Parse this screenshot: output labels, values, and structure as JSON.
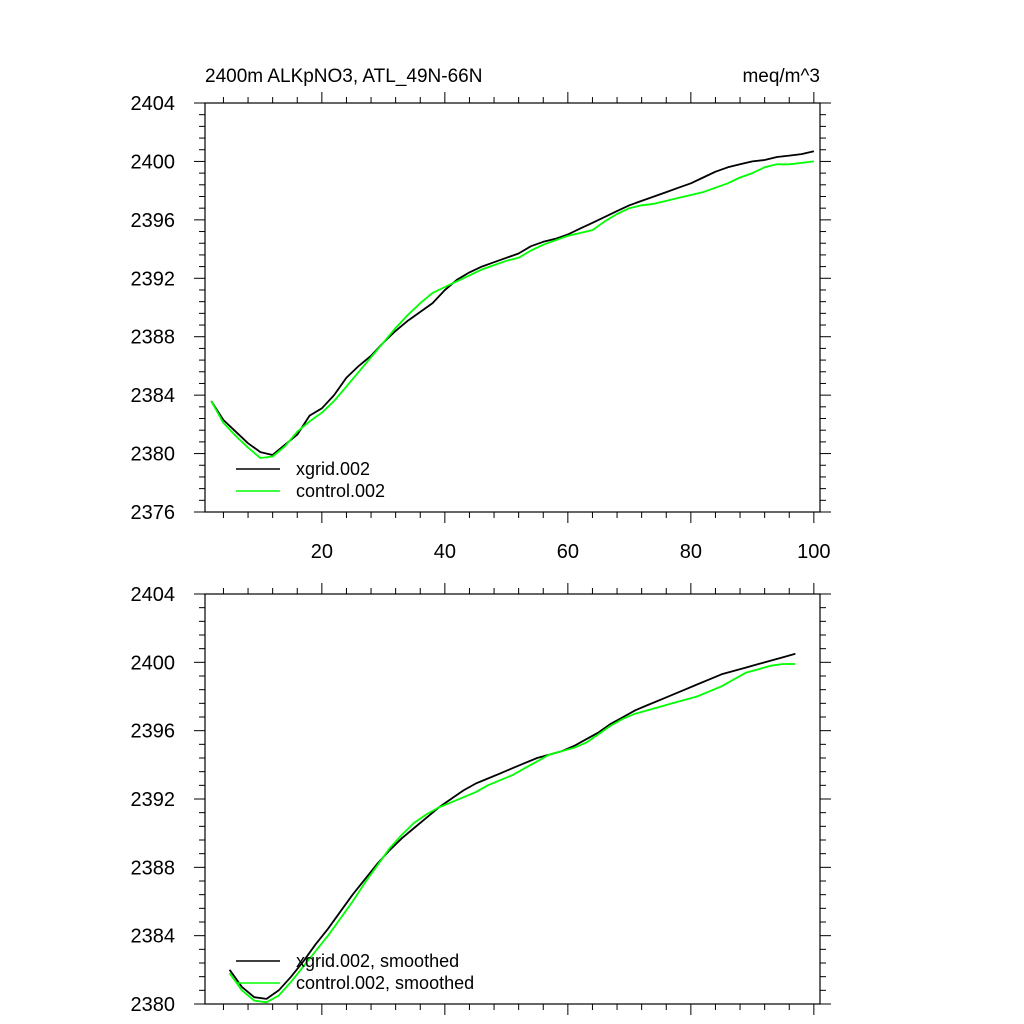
{
  "chart_data": [
    {
      "type": "line",
      "title_left": "2400m ALKpNO3, ATL_49N-66N",
      "title_right": "meq/m^3",
      "xlim": [
        1,
        101
      ],
      "ylim": [
        2376,
        2404
      ],
      "yticks": [
        2376,
        2380,
        2384,
        2388,
        2392,
        2396,
        2400,
        2404
      ],
      "xticks": [
        20,
        40,
        60,
        80,
        100
      ],
      "show_x_tick_labels": true,
      "series": [
        {
          "name": "xgrid.002",
          "color": "#000000",
          "x": [
            2,
            4,
            6,
            8,
            10,
            12,
            14,
            16,
            18,
            20,
            22,
            24,
            26,
            28,
            30,
            32,
            34,
            36,
            38,
            40,
            42,
            44,
            46,
            48,
            50,
            52,
            54,
            56,
            58,
            60,
            62,
            64,
            66,
            68,
            70,
            72,
            74,
            76,
            78,
            80,
            82,
            84,
            86,
            88,
            90,
            92,
            94,
            96,
            98,
            100
          ],
          "values": [
            2383.6,
            2382.3,
            2381.5,
            2380.7,
            2380.1,
            2379.9,
            2380.6,
            2381.3,
            2382.6,
            2383.1,
            2384.0,
            2385.2,
            2386.0,
            2386.7,
            2387.6,
            2388.4,
            2389.1,
            2389.7,
            2390.3,
            2391.2,
            2391.9,
            2392.4,
            2392.8,
            2393.1,
            2393.4,
            2393.7,
            2394.2,
            2394.5,
            2394.7,
            2395.0,
            2395.4,
            2395.8,
            2396.2,
            2396.6,
            2397.0,
            2397.3,
            2397.6,
            2397.9,
            2398.2,
            2398.5,
            2398.9,
            2399.3,
            2399.6,
            2399.8,
            2400.0,
            2400.1,
            2400.3,
            2400.4,
            2400.5,
            2400.7
          ]
        },
        {
          "name": "control.002",
          "color": "#00ff00",
          "x": [
            2,
            4,
            6,
            8,
            10,
            12,
            14,
            16,
            18,
            20,
            22,
            24,
            26,
            28,
            30,
            32,
            34,
            36,
            38,
            40,
            42,
            44,
            46,
            48,
            50,
            52,
            54,
            56,
            58,
            60,
            62,
            64,
            66,
            68,
            70,
            72,
            74,
            76,
            78,
            80,
            82,
            84,
            86,
            88,
            90,
            92,
            94,
            96,
            98,
            100
          ],
          "values": [
            2383.6,
            2382.1,
            2381.2,
            2380.4,
            2379.7,
            2379.8,
            2380.5,
            2381.5,
            2382.2,
            2382.8,
            2383.6,
            2384.6,
            2385.6,
            2386.6,
            2387.6,
            2388.6,
            2389.5,
            2390.3,
            2391.0,
            2391.4,
            2391.8,
            2392.2,
            2392.6,
            2392.9,
            2393.2,
            2393.4,
            2393.9,
            2394.3,
            2394.6,
            2394.9,
            2395.1,
            2395.3,
            2395.9,
            2396.4,
            2396.8,
            2397.0,
            2397.1,
            2397.3,
            2397.5,
            2397.7,
            2397.9,
            2398.2,
            2398.5,
            2398.9,
            2399.2,
            2399.6,
            2399.8,
            2399.8,
            2399.9,
            2400.0
          ]
        }
      ]
    },
    {
      "type": "line",
      "xlim": [
        1,
        101
      ],
      "ylim": [
        2380,
        2404
      ],
      "yticks": [
        2380,
        2384,
        2388,
        2392,
        2396,
        2400,
        2404
      ],
      "xticks": [
        20,
        40,
        60,
        80,
        100
      ],
      "show_x_tick_labels": false,
      "series": [
        {
          "name": "xgrid.002, smoothed",
          "color": "#000000",
          "x": [
            5,
            7,
            9,
            11,
            13,
            15,
            17,
            19,
            21,
            23,
            25,
            27,
            29,
            31,
            33,
            35,
            37,
            39,
            41,
            43,
            45,
            47,
            49,
            51,
            53,
            55,
            57,
            59,
            61,
            63,
            65,
            67,
            69,
            71,
            73,
            75,
            77,
            79,
            81,
            83,
            85,
            87,
            89,
            91,
            93,
            95,
            97
          ],
          "values": [
            2382.0,
            2381.0,
            2380.4,
            2380.3,
            2380.8,
            2381.6,
            2382.5,
            2383.5,
            2384.4,
            2385.4,
            2386.4,
            2387.3,
            2388.2,
            2389.0,
            2389.7,
            2390.3,
            2390.9,
            2391.5,
            2392.0,
            2392.5,
            2392.9,
            2393.2,
            2393.5,
            2393.8,
            2394.1,
            2394.4,
            2394.6,
            2394.8,
            2395.1,
            2395.5,
            2395.9,
            2396.4,
            2396.8,
            2397.2,
            2397.5,
            2397.8,
            2398.1,
            2398.4,
            2398.7,
            2399.0,
            2399.3,
            2399.5,
            2399.7,
            2399.9,
            2400.1,
            2400.3,
            2400.5
          ]
        },
        {
          "name": "control.002, smoothed",
          "color": "#00ff00",
          "x": [
            5,
            7,
            9,
            11,
            13,
            15,
            17,
            19,
            21,
            23,
            25,
            27,
            29,
            31,
            33,
            35,
            37,
            39,
            41,
            43,
            45,
            47,
            49,
            51,
            53,
            55,
            57,
            59,
            61,
            63,
            65,
            67,
            69,
            71,
            73,
            75,
            77,
            79,
            81,
            83,
            85,
            87,
            89,
            91,
            93,
            95,
            97
          ],
          "values": [
            2381.8,
            2380.8,
            2380.2,
            2380.1,
            2380.5,
            2381.3,
            2382.2,
            2383.1,
            2384.0,
            2385.0,
            2386.0,
            2387.1,
            2388.1,
            2389.1,
            2389.9,
            2390.6,
            2391.1,
            2391.5,
            2391.8,
            2392.1,
            2392.4,
            2392.8,
            2393.1,
            2393.4,
            2393.8,
            2394.2,
            2394.6,
            2394.8,
            2395.0,
            2395.3,
            2395.8,
            2396.3,
            2396.7,
            2397.0,
            2397.2,
            2397.4,
            2397.6,
            2397.8,
            2398.0,
            2398.3,
            2398.6,
            2399.0,
            2399.4,
            2399.6,
            2399.8,
            2399.9,
            2399.9
          ]
        }
      ]
    }
  ]
}
